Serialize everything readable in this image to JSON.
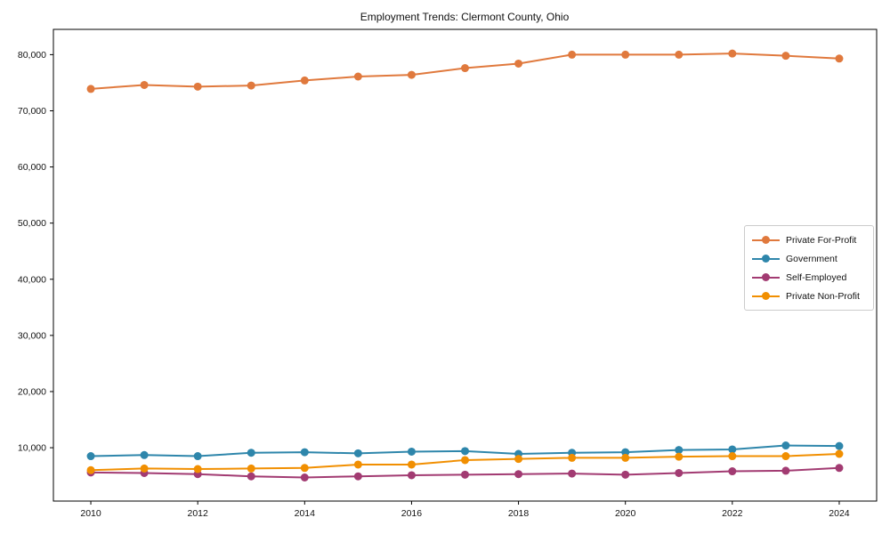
{
  "figure": {
    "title": "Employment Trends: Clermont County, Ohio"
  },
  "chart_data": {
    "type": "line",
    "title": "Employment Trends: Clermont County, Ohio",
    "xlabel": "",
    "ylabel": "",
    "grid": false,
    "legend_position": "center right",
    "legend_border_color": "#cccccc",
    "axis_color": "#000000",
    "tick_label_color": "#111111",
    "xlim": [
      2009.3,
      2024.7
    ],
    "ylim": [
      500,
      84500
    ],
    "x": [
      2010,
      2011,
      2012,
      2013,
      2014,
      2015,
      2016,
      2017,
      2018,
      2019,
      2020,
      2021,
      2022,
      2023,
      2024
    ],
    "xticks": {
      "values": [
        2010,
        2012,
        2014,
        2016,
        2018,
        2020,
        2022,
        2024
      ],
      "labels": [
        "2010",
        "2012",
        "2014",
        "2016",
        "2018",
        "2020",
        "2022",
        "2024"
      ]
    },
    "yticks": {
      "values": [
        10000,
        20000,
        30000,
        40000,
        50000,
        60000,
        70000,
        80000
      ],
      "labels": [
        "10,000",
        "20,000",
        "30,000",
        "40,000",
        "50,000",
        "60,000",
        "70,000",
        "80,000"
      ]
    },
    "series": [
      {
        "name": "Private For-Profit",
        "color": "#E0793D",
        "values": [
          73900,
          74600,
          74300,
          74500,
          75400,
          76100,
          76400,
          77600,
          78400,
          80000,
          80000,
          80000,
          80200,
          79800,
          79300
        ]
      },
      {
        "name": "Government",
        "color": "#2E86AB",
        "values": [
          8500,
          8700,
          8500,
          9100,
          9200,
          9000,
          9300,
          9400,
          8900,
          9100,
          9200,
          9600,
          9700,
          10400,
          10300
        ]
      },
      {
        "name": "Self-Employed",
        "color": "#A23B72",
        "values": [
          5600,
          5500,
          5300,
          4900,
          4700,
          4900,
          5100,
          5200,
          5300,
          5400,
          5200,
          5500,
          5800,
          5900,
          6400
        ]
      },
      {
        "name": "Private Non-Profit",
        "color": "#F18F01",
        "values": [
          6000,
          6300,
          6200,
          6300,
          6400,
          7000,
          7000,
          7800,
          8000,
          8200,
          8200,
          8400,
          8500,
          8500,
          8900
        ]
      }
    ]
  }
}
